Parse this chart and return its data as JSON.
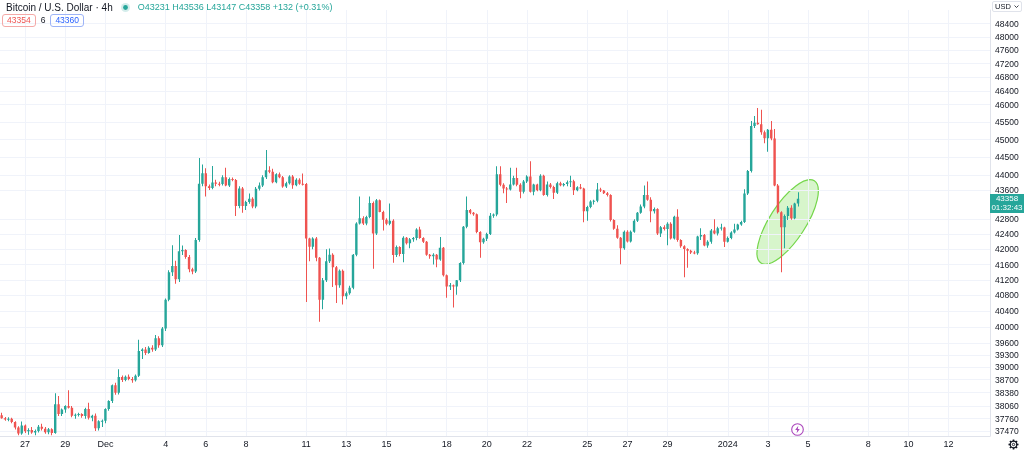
{
  "chart_data": {
    "type": "candlestick",
    "title": "Bitcoin / U.S. Dollar · 4h",
    "ylabel": "USD",
    "annotations": [
      "O43231 H43536 L43147 C43358 +132 (+0.31%)",
      "43354",
      "6",
      "43360",
      "43358",
      "01:32:43"
    ],
    "log": true,
    "grid": true,
    "xlim": [
      "2023-11-25T18:00",
      "2024-01-14T01:30"
    ],
    "xticks": [
      {
        "value": "2023-11-27",
        "label": "27"
      },
      {
        "value": "2023-11-29",
        "label": "29"
      },
      {
        "value": "2023-12-01",
        "label": "Dec"
      },
      {
        "value": "2023-12-04",
        "label": "4"
      },
      {
        "value": "2023-12-06",
        "label": "6"
      },
      {
        "value": "2023-12-08",
        "label": "8"
      },
      {
        "value": "2023-12-11",
        "label": "11"
      },
      {
        "value": "2023-12-13",
        "label": "13"
      },
      {
        "value": "2023-12-15",
        "label": "15"
      },
      {
        "value": "2023-12-18",
        "label": "18"
      },
      {
        "value": "2023-12-20",
        "label": "20"
      },
      {
        "value": "2023-12-22",
        "label": "22"
      },
      {
        "value": "2023-12-25",
        "label": "25"
      },
      {
        "value": "2023-12-27",
        "label": "27"
      },
      {
        "value": "2023-12-29",
        "label": "29"
      },
      {
        "value": "2024-01-01",
        "label": "2024"
      },
      {
        "value": "2024-01-03",
        "label": "3"
      },
      {
        "value": "2024-01-05",
        "label": "5"
      },
      {
        "value": "2024-01-08",
        "label": "8"
      },
      {
        "value": "2024-01-10",
        "label": "10"
      },
      {
        "value": "2024-01-12",
        "label": "12"
      }
    ],
    "ylim": [
      37350,
      48820
    ],
    "yticks": [
      37470,
      37760,
      38060,
      38380,
      38700,
      39000,
      39300,
      39600,
      40000,
      40400,
      40800,
      41200,
      41600,
      42000,
      42400,
      42800,
      43600,
      44000,
      44500,
      45000,
      45500,
      46000,
      46400,
      46800,
      47200,
      47600,
      48000,
      48400
    ],
    "x": [
      "2023-11-25T20:00",
      "2023-11-26T00:00",
      "2023-11-26T04:00",
      "2023-11-26T08:00",
      "2023-11-26T12:00",
      "2023-11-26T16:00",
      "2023-11-26T20:00",
      "2023-11-27T00:00",
      "2023-11-27T04:00",
      "2023-11-27T08:00",
      "2023-11-27T12:00",
      "2023-11-27T16:00",
      "2023-11-27T20:00",
      "2023-11-28T00:00",
      "2023-11-28T04:00",
      "2023-11-28T08:00",
      "2023-11-28T12:00",
      "2023-11-28T16:00",
      "2023-11-28T20:00",
      "2023-11-29T00:00",
      "2023-11-29T04:00",
      "2023-11-29T08:00",
      "2023-11-29T12:00",
      "2023-11-29T16:00",
      "2023-11-29T20:00",
      "2023-11-30T00:00",
      "2023-11-30T04:00",
      "2023-11-30T08:00",
      "2023-11-30T12:00",
      "2023-11-30T16:00",
      "2023-11-30T20:00",
      "2023-12-01T00:00",
      "2023-12-01T04:00",
      "2023-12-01T08:00",
      "2023-12-01T12:00",
      "2023-12-01T16:00",
      "2023-12-01T20:00",
      "2023-12-02T00:00",
      "2023-12-02T04:00",
      "2023-12-02T08:00",
      "2023-12-02T12:00",
      "2023-12-02T16:00",
      "2023-12-02T20:00",
      "2023-12-03T00:00",
      "2023-12-03T04:00",
      "2023-12-03T08:00",
      "2023-12-03T12:00",
      "2023-12-03T16:00",
      "2023-12-03T20:00",
      "2023-12-04T00:00",
      "2023-12-04T04:00",
      "2023-12-04T08:00",
      "2023-12-04T12:00",
      "2023-12-04T16:00",
      "2023-12-04T20:00",
      "2023-12-05T00:00",
      "2023-12-05T04:00",
      "2023-12-05T08:00",
      "2023-12-05T12:00",
      "2023-12-05T16:00",
      "2023-12-05T20:00",
      "2023-12-06T00:00",
      "2023-12-06T04:00",
      "2023-12-06T08:00",
      "2023-12-06T12:00",
      "2023-12-06T16:00",
      "2023-12-06T20:00",
      "2023-12-07T00:00",
      "2023-12-07T04:00",
      "2023-12-07T08:00",
      "2023-12-07T12:00",
      "2023-12-07T16:00",
      "2023-12-07T20:00",
      "2023-12-08T00:00",
      "2023-12-08T04:00",
      "2023-12-08T08:00",
      "2023-12-08T12:00",
      "2023-12-08T16:00",
      "2023-12-08T20:00",
      "2023-12-09T00:00",
      "2023-12-09T04:00",
      "2023-12-09T08:00",
      "2023-12-09T12:00",
      "2023-12-09T16:00",
      "2023-12-09T20:00",
      "2023-12-10T00:00",
      "2023-12-10T04:00",
      "2023-12-10T08:00",
      "2023-12-10T12:00",
      "2023-12-10T16:00",
      "2023-12-10T20:00",
      "2023-12-11T00:00",
      "2023-12-11T04:00",
      "2023-12-11T08:00",
      "2023-12-11T12:00",
      "2023-12-11T16:00",
      "2023-12-11T20:00",
      "2023-12-12T00:00",
      "2023-12-12T04:00",
      "2023-12-12T08:00",
      "2023-12-12T12:00",
      "2023-12-12T16:00",
      "2023-12-12T20:00",
      "2023-12-13T00:00",
      "2023-12-13T04:00",
      "2023-12-13T08:00",
      "2023-12-13T12:00",
      "2023-12-13T16:00",
      "2023-12-13T20:00",
      "2023-12-14T00:00",
      "2023-12-14T04:00",
      "2023-12-14T08:00",
      "2023-12-14T12:00",
      "2023-12-14T16:00",
      "2023-12-14T20:00",
      "2023-12-15T00:00",
      "2023-12-15T04:00",
      "2023-12-15T08:00",
      "2023-12-15T12:00",
      "2023-12-15T16:00",
      "2023-12-15T20:00",
      "2023-12-16T00:00",
      "2023-12-16T04:00",
      "2023-12-16T08:00",
      "2023-12-16T12:00",
      "2023-12-16T16:00",
      "2023-12-16T20:00",
      "2023-12-17T00:00",
      "2023-12-17T04:00",
      "2023-12-17T08:00",
      "2023-12-17T12:00",
      "2023-12-17T16:00",
      "2023-12-17T20:00",
      "2023-12-18T00:00",
      "2023-12-18T04:00",
      "2023-12-18T08:00",
      "2023-12-18T12:00",
      "2023-12-18T16:00",
      "2023-12-18T20:00",
      "2023-12-19T00:00",
      "2023-12-19T04:00",
      "2023-12-19T08:00",
      "2023-12-19T12:00",
      "2023-12-19T16:00",
      "2023-12-19T20:00",
      "2023-12-20T00:00",
      "2023-12-20T04:00",
      "2023-12-20T08:00",
      "2023-12-20T12:00",
      "2023-12-20T16:00",
      "2023-12-20T20:00",
      "2023-12-21T00:00",
      "2023-12-21T04:00",
      "2023-12-21T08:00",
      "2023-12-21T12:00",
      "2023-12-21T16:00",
      "2023-12-21T20:00",
      "2023-12-22T00:00",
      "2023-12-22T04:00",
      "2023-12-22T08:00",
      "2023-12-22T12:00",
      "2023-12-22T16:00",
      "2023-12-22T20:00",
      "2023-12-23T00:00",
      "2023-12-23T04:00",
      "2023-12-23T08:00",
      "2023-12-23T12:00",
      "2023-12-23T16:00",
      "2023-12-23T20:00",
      "2023-12-24T00:00",
      "2023-12-24T04:00",
      "2023-12-24T08:00",
      "2023-12-24T12:00",
      "2023-12-24T16:00",
      "2023-12-24T20:00",
      "2023-12-25T00:00",
      "2023-12-25T04:00",
      "2023-12-25T08:00",
      "2023-12-25T12:00",
      "2023-12-25T16:00",
      "2023-12-25T20:00",
      "2023-12-26T00:00",
      "2023-12-26T04:00",
      "2023-12-26T08:00",
      "2023-12-26T12:00",
      "2023-12-26T16:00",
      "2023-12-26T20:00",
      "2023-12-27T00:00",
      "2023-12-27T04:00",
      "2023-12-27T08:00",
      "2023-12-27T12:00",
      "2023-12-27T16:00",
      "2023-12-27T20:00",
      "2023-12-28T00:00",
      "2023-12-28T04:00",
      "2023-12-28T08:00",
      "2023-12-28T12:00",
      "2023-12-28T16:00",
      "2023-12-28T20:00",
      "2023-12-29T00:00",
      "2023-12-29T04:00",
      "2023-12-29T08:00",
      "2023-12-29T12:00",
      "2023-12-29T16:00",
      "2023-12-29T20:00",
      "2023-12-30T00:00",
      "2023-12-30T04:00",
      "2023-12-30T08:00",
      "2023-12-30T12:00",
      "2023-12-30T16:00",
      "2023-12-30T20:00",
      "2023-12-31T00:00",
      "2023-12-31T04:00",
      "2023-12-31T08:00",
      "2023-12-31T12:00",
      "2023-12-31T16:00",
      "2023-12-31T20:00",
      "2024-01-01T00:00",
      "2024-01-01T04:00",
      "2024-01-01T08:00",
      "2024-01-01T12:00",
      "2024-01-01T16:00",
      "2024-01-01T20:00",
      "2024-01-02T00:00",
      "2024-01-02T04:00",
      "2024-01-02T08:00",
      "2024-01-02T12:00",
      "2024-01-02T16:00",
      "2024-01-02T20:00",
      "2024-01-03T00:00",
      "2024-01-03T04:00",
      "2024-01-03T08:00",
      "2024-01-03T12:00",
      "2024-01-03T16:00",
      "2024-01-03T20:00",
      "2024-01-04T00:00",
      "2024-01-04T04:00",
      "2024-01-04T08:00",
      "2024-01-04T12:00"
    ],
    "ohlc": [
      [
        37840,
        37900,
        37760,
        37770
      ],
      [
        37770,
        37800,
        37710,
        37740
      ],
      [
        37740,
        37790,
        37700,
        37760
      ],
      [
        37760,
        37780,
        37650,
        37680
      ],
      [
        37680,
        37700,
        37500,
        37550
      ],
      [
        37550,
        37580,
        37370,
        37410
      ],
      [
        37410,
        37690,
        37380,
        37600
      ],
      [
        37600,
        37620,
        37420,
        37460
      ],
      [
        37460,
        37530,
        37380,
        37490
      ],
      [
        37490,
        37560,
        37400,
        37430
      ],
      [
        37430,
        37500,
        37370,
        37470
      ],
      [
        37470,
        37610,
        37430,
        37570
      ],
      [
        37570,
        37640,
        37480,
        37520
      ],
      [
        37520,
        37560,
        37400,
        37440
      ],
      [
        37440,
        37540,
        37390,
        37510
      ],
      [
        37510,
        37530,
        37370,
        37420
      ],
      [
        37420,
        38370,
        37400,
        38100
      ],
      [
        38100,
        38300,
        37820,
        37870
      ],
      [
        37870,
        38000,
        37820,
        37980
      ],
      [
        37980,
        38080,
        37900,
        38060
      ],
      [
        38060,
        38440,
        38000,
        38020
      ],
      [
        38020,
        38060,
        37790,
        37830
      ],
      [
        37830,
        37880,
        37760,
        37850
      ],
      [
        37850,
        37900,
        37810,
        37870
      ],
      [
        37870,
        37890,
        37780,
        37820
      ],
      [
        37820,
        38020,
        37760,
        37990
      ],
      [
        37990,
        38140,
        37740,
        37780
      ],
      [
        37780,
        37850,
        37700,
        37830
      ],
      [
        37830,
        37880,
        37470,
        37530
      ],
      [
        37530,
        37720,
        37480,
        37700
      ],
      [
        37700,
        37740,
        37560,
        37710
      ],
      [
        37710,
        38010,
        37650,
        37990
      ],
      [
        37990,
        38200,
        37950,
        38180
      ],
      [
        38180,
        38580,
        38130,
        38560
      ],
      [
        38560,
        38620,
        38330,
        38380
      ],
      [
        38380,
        38950,
        38340,
        38760
      ],
      [
        38760,
        38800,
        38640,
        38690
      ],
      [
        38690,
        38800,
        38660,
        38770
      ],
      [
        38770,
        38820,
        38680,
        38710
      ],
      [
        38710,
        38760,
        38620,
        38680
      ],
      [
        38680,
        38820,
        38650,
        38790
      ],
      [
        38790,
        39680,
        38760,
        39400
      ],
      [
        39400,
        39470,
        39200,
        39440
      ],
      [
        39440,
        39500,
        39300,
        39350
      ],
      [
        39350,
        39520,
        39330,
        39480
      ],
      [
        39480,
        39540,
        39380,
        39440
      ],
      [
        39440,
        39800,
        39400,
        39720
      ],
      [
        39720,
        39770,
        39480,
        39540
      ],
      [
        39540,
        40000,
        39500,
        39960
      ],
      [
        39960,
        40720,
        39900,
        40690
      ],
      [
        40690,
        41450,
        40650,
        41400
      ],
      [
        41400,
        42110,
        41300,
        41560
      ],
      [
        41560,
        41700,
        41100,
        41220
      ],
      [
        41220,
        42380,
        41150,
        41950
      ],
      [
        41950,
        42100,
        41850,
        41980
      ],
      [
        41980,
        42000,
        41750,
        41800
      ],
      [
        41800,
        41850,
        41400,
        41480
      ],
      [
        41480,
        41520,
        41350,
        41420
      ],
      [
        41420,
        42300,
        41380,
        42250
      ],
      [
        42250,
        44480,
        42200,
        43770
      ],
      [
        43770,
        44300,
        43700,
        44060
      ],
      [
        44060,
        44200,
        43420,
        43700
      ],
      [
        43700,
        43750,
        43600,
        43650
      ],
      [
        43650,
        44260,
        43620,
        43800
      ],
      [
        43800,
        43880,
        43700,
        43770
      ],
      [
        43770,
        43820,
        43700,
        43760
      ],
      [
        43760,
        44000,
        43720,
        43950
      ],
      [
        43950,
        44210,
        43700,
        43720
      ],
      [
        43720,
        43940,
        43680,
        43900
      ],
      [
        43900,
        43940,
        43840,
        43870
      ],
      [
        43870,
        43900,
        42890,
        43160
      ],
      [
        43160,
        43700,
        43100,
        43640
      ],
      [
        43640,
        43680,
        42980,
        43160
      ],
      [
        43160,
        43300,
        43050,
        43270
      ],
      [
        43270,
        43500,
        43220,
        43360
      ],
      [
        43360,
        43400,
        43100,
        43150
      ],
      [
        43150,
        43680,
        43100,
        43630
      ],
      [
        43630,
        43800,
        43580,
        43720
      ],
      [
        43720,
        44000,
        43680,
        43950
      ],
      [
        43950,
        44710,
        43900,
        44140
      ],
      [
        44140,
        44250,
        44060,
        44100
      ],
      [
        44100,
        44180,
        43780,
        43810
      ],
      [
        43810,
        44060,
        43780,
        44030
      ],
      [
        44030,
        44080,
        43920,
        43950
      ],
      [
        43950,
        43980,
        43660,
        43690
      ],
      [
        43690,
        43820,
        43650,
        43780
      ],
      [
        43780,
        44000,
        43750,
        43970
      ],
      [
        43970,
        44010,
        43630,
        43730
      ],
      [
        43730,
        43920,
        43700,
        43880
      ],
      [
        43880,
        43920,
        43740,
        43770
      ],
      [
        43770,
        44050,
        43720,
        43760
      ],
      [
        43760,
        43790,
        40630,
        42290
      ],
      [
        42290,
        42310,
        41690,
        42070
      ],
      [
        42070,
        42320,
        42000,
        42290
      ],
      [
        42290,
        42330,
        41690,
        41780
      ],
      [
        41780,
        41800,
        40130,
        40690
      ],
      [
        40690,
        41250,
        40450,
        41190
      ],
      [
        41190,
        42000,
        41150,
        41690
      ],
      [
        41690,
        42020,
        41640,
        41860
      ],
      [
        41860,
        41900,
        41020,
        41530
      ],
      [
        41530,
        41560,
        40610,
        41060
      ],
      [
        41060,
        41470,
        41000,
        41440
      ],
      [
        41440,
        41470,
        40570,
        40780
      ],
      [
        40780,
        40900,
        40700,
        40860
      ],
      [
        40860,
        41050,
        40820,
        41000
      ],
      [
        41000,
        41880,
        40960,
        41860
      ],
      [
        41860,
        42720,
        41820,
        42690
      ],
      [
        42690,
        43420,
        42660,
        42830
      ],
      [
        42830,
        42880,
        42650,
        42690
      ],
      [
        42690,
        42900,
        42640,
        42860
      ],
      [
        42860,
        43420,
        42830,
        43240
      ],
      [
        43240,
        43280,
        41490,
        42420
      ],
      [
        42420,
        43350,
        42380,
        43320
      ],
      [
        43320,
        43340,
        42990,
        43000
      ],
      [
        43000,
        43030,
        42500,
        42790
      ],
      [
        42790,
        42830,
        42640,
        42680
      ],
      [
        42680,
        43230,
        42640,
        42760
      ],
      [
        42760,
        42800,
        41650,
        41850
      ],
      [
        41850,
        42100,
        41800,
        42060
      ],
      [
        42060,
        42080,
        41820,
        41880
      ],
      [
        41880,
        42350,
        41660,
        42310
      ],
      [
        42310,
        42330,
        42130,
        42160
      ],
      [
        42160,
        42300,
        42030,
        42270
      ],
      [
        42270,
        42330,
        42200,
        42300
      ],
      [
        42300,
        42560,
        42240,
        42530
      ],
      [
        42530,
        42600,
        42280,
        42300
      ],
      [
        42300,
        42320,
        42170,
        42200
      ],
      [
        42200,
        42220,
        41830,
        41860
      ],
      [
        41860,
        41880,
        41750,
        41820
      ],
      [
        41820,
        41900,
        41600,
        41860
      ],
      [
        41860,
        41880,
        41530,
        41730
      ],
      [
        41730,
        42330,
        41700,
        42040
      ],
      [
        42040,
        42060,
        41290,
        41320
      ],
      [
        41320,
        41340,
        40740,
        41030
      ],
      [
        41030,
        41120,
        40940,
        41060
      ],
      [
        41060,
        41080,
        40490,
        41030
      ],
      [
        41030,
        41200,
        40820,
        41190
      ],
      [
        41190,
        41660,
        41150,
        41640
      ],
      [
        41640,
        42620,
        41600,
        42600
      ],
      [
        42600,
        43420,
        42560,
        43050
      ],
      [
        43050,
        43080,
        42940,
        42980
      ],
      [
        42980,
        43000,
        42900,
        42940
      ],
      [
        42940,
        42960,
        42430,
        42460
      ],
      [
        42460,
        42480,
        41780,
        42190
      ],
      [
        42190,
        42310,
        42150,
        42280
      ],
      [
        42280,
        42440,
        42220,
        42410
      ],
      [
        42410,
        42970,
        42380,
        42900
      ],
      [
        42900,
        42960,
        42840,
        42930
      ],
      [
        42930,
        44250,
        42880,
        44030
      ],
      [
        44030,
        44250,
        43700,
        43740
      ],
      [
        43740,
        43780,
        43510,
        43640
      ],
      [
        43640,
        43680,
        43240,
        43610
      ],
      [
        43610,
        44210,
        43580,
        43750
      ],
      [
        43750,
        43990,
        43720,
        43930
      ],
      [
        43930,
        44210,
        43700,
        43740
      ],
      [
        43740,
        43780,
        43370,
        43550
      ],
      [
        43550,
        43870,
        43500,
        43830
      ],
      [
        43830,
        44000,
        43790,
        43970
      ],
      [
        43970,
        44390,
        43530,
        43550
      ],
      [
        43550,
        43770,
        43450,
        43750
      ],
      [
        43750,
        43770,
        43560,
        43590
      ],
      [
        43590,
        44030,
        43560,
        43990
      ],
      [
        43990,
        44020,
        43440,
        43460
      ],
      [
        43460,
        43830,
        43420,
        43750
      ],
      [
        43750,
        43790,
        43640,
        43680
      ],
      [
        43680,
        43710,
        43350,
        43520
      ],
      [
        43520,
        43820,
        43490,
        43780
      ],
      [
        43780,
        43820,
        43700,
        43730
      ],
      [
        43730,
        43790,
        43690,
        43760
      ],
      [
        43760,
        43860,
        43700,
        43810
      ],
      [
        43810,
        43990,
        43680,
        43840
      ],
      [
        43840,
        43880,
        43460,
        43590
      ],
      [
        43590,
        43700,
        43560,
        43670
      ],
      [
        43670,
        43760,
        43620,
        43640
      ],
      [
        43640,
        43660,
        42720,
        43020
      ],
      [
        43020,
        43170,
        42760,
        43130
      ],
      [
        43130,
        43320,
        43100,
        43280
      ],
      [
        43280,
        43330,
        43200,
        43300
      ],
      [
        43300,
        43790,
        43260,
        43610
      ],
      [
        43610,
        43660,
        43540,
        43580
      ],
      [
        43580,
        43600,
        43490,
        43510
      ],
      [
        43510,
        43540,
        43420,
        43460
      ],
      [
        43460,
        43480,
        42740,
        42780
      ],
      [
        42780,
        42800,
        42520,
        42550
      ],
      [
        42550,
        42640,
        42280,
        42310
      ],
      [
        42310,
        42330,
        41610,
        42030
      ],
      [
        42030,
        42500,
        41990,
        42470
      ],
      [
        42470,
        42510,
        42180,
        42210
      ],
      [
        42210,
        42500,
        42180,
        42470
      ],
      [
        42470,
        42800,
        42440,
        42760
      ],
      [
        42760,
        43000,
        42730,
        42980
      ],
      [
        42980,
        43200,
        42950,
        43150
      ],
      [
        43150,
        43720,
        43100,
        43460
      ],
      [
        43460,
        43830,
        43300,
        43330
      ],
      [
        43330,
        43400,
        42720,
        43020
      ],
      [
        43020,
        43120,
        42960,
        43080
      ],
      [
        43080,
        43100,
        42380,
        42420
      ],
      [
        42420,
        42620,
        42330,
        42590
      ],
      [
        42590,
        42640,
        42500,
        42540
      ],
      [
        42540,
        42720,
        42110,
        42680
      ],
      [
        42680,
        42720,
        42260,
        42290
      ],
      [
        42290,
        42900,
        42260,
        42870
      ],
      [
        42870,
        43070,
        42200,
        42250
      ],
      [
        42250,
        42270,
        42040,
        42080
      ],
      [
        42080,
        42110,
        41270,
        42010
      ],
      [
        42010,
        42030,
        41520,
        41960
      ],
      [
        41960,
        41990,
        41880,
        41920
      ],
      [
        41920,
        41960,
        41870,
        41900
      ],
      [
        41900,
        42360,
        41860,
        42340
      ],
      [
        42340,
        42560,
        42250,
        42380
      ],
      [
        42380,
        42410,
        42080,
        42100
      ],
      [
        42100,
        42240,
        42040,
        42200
      ],
      [
        42200,
        42540,
        42150,
        42500
      ],
      [
        42500,
        42800,
        42400,
        42420
      ],
      [
        42420,
        42600,
        42370,
        42560
      ],
      [
        42560,
        42680,
        42500,
        42580
      ],
      [
        42580,
        42600,
        42060,
        42200
      ],
      [
        42200,
        42340,
        42180,
        42300
      ],
      [
        42300,
        42480,
        42270,
        42450
      ],
      [
        42450,
        42680,
        42420,
        42530
      ],
      [
        42530,
        42680,
        42500,
        42660
      ],
      [
        42660,
        42760,
        42630,
        42730
      ],
      [
        42730,
        43620,
        42700,
        43500
      ],
      [
        43500,
        44150,
        43460,
        44120
      ],
      [
        44120,
        45530,
        44080,
        45390
      ],
      [
        45390,
        45670,
        45330,
        45480
      ],
      [
        45480,
        45900,
        45420,
        45440
      ],
      [
        45440,
        45850,
        45140,
        45210
      ],
      [
        45210,
        45260,
        44900,
        45040
      ],
      [
        45040,
        45300,
        44660,
        45280
      ],
      [
        45280,
        45530,
        44980,
        45030
      ],
      [
        45030,
        45300,
        43700,
        43720
      ],
      [
        43720,
        43760,
        42960,
        42990
      ],
      [
        42990,
        43020,
        41400,
        42590
      ],
      [
        42590,
        42930,
        42030,
        42890
      ],
      [
        42890,
        43160,
        42780,
        43110
      ],
      [
        43110,
        43180,
        42790,
        42830
      ],
      [
        42830,
        43250,
        42800,
        43226
      ],
      [
        43231,
        43536,
        43147,
        43358
      ]
    ],
    "colors": [
      "#ef5350",
      "#ef5350",
      "#26a69a",
      "#ef5350",
      "#ef5350",
      "#ef5350",
      "#26a69a",
      "#ef5350",
      "#26a69a",
      "#ef5350",
      "#26a69a",
      "#26a69a",
      "#ef5350",
      "#ef5350",
      "#26a69a",
      "#ef5350",
      "#26a69a",
      "#ef5350",
      "#26a69a",
      "#26a69a",
      "#ef5350",
      "#ef5350",
      "#26a69a",
      "#26a69a",
      "#ef5350",
      "#26a69a",
      "#ef5350",
      "#26a69a",
      "#ef5350",
      "#26a69a",
      "#26a69a",
      "#26a69a",
      "#26a69a",
      "#26a69a",
      "#ef5350",
      "#26a69a",
      "#ef5350",
      "#26a69a",
      "#ef5350",
      "#ef5350",
      "#26a69a",
      "#26a69a",
      "#26a69a",
      "#ef5350",
      "#26a69a",
      "#ef5350",
      "#26a69a",
      "#ef5350",
      "#26a69a",
      "#26a69a",
      "#26a69a",
      "#26a69a",
      "#ef5350",
      "#26a69a",
      "#26a69a",
      "#ef5350",
      "#ef5350",
      "#ef5350",
      "#26a69a",
      "#26a69a",
      "#26a69a",
      "#ef5350",
      "#ef5350",
      "#26a69a",
      "#ef5350",
      "#ef5350",
      "#26a69a",
      "#ef5350",
      "#26a69a",
      "#ef5350",
      "#ef5350",
      "#26a69a",
      "#ef5350",
      "#26a69a",
      "#26a69a",
      "#ef5350",
      "#26a69a",
      "#26a69a",
      "#26a69a",
      "#26a69a",
      "#ef5350",
      "#ef5350",
      "#26a69a",
      "#ef5350",
      "#ef5350",
      "#26a69a",
      "#26a69a",
      "#ef5350",
      "#26a69a",
      "#ef5350",
      "#ef5350",
      "#ef5350",
      "#ef5350",
      "#26a69a",
      "#ef5350",
      "#ef5350",
      "#26a69a",
      "#26a69a",
      "#26a69a",
      "#ef5350",
      "#ef5350",
      "#26a69a",
      "#ef5350",
      "#26a69a",
      "#26a69a",
      "#26a69a",
      "#26a69a",
      "#26a69a",
      "#ef5350",
      "#26a69a",
      "#26a69a",
      "#ef5350",
      "#26a69a",
      "#ef5350",
      "#ef5350",
      "#ef5350",
      "#26a69a",
      "#ef5350",
      "#26a69a",
      "#ef5350",
      "#26a69a",
      "#ef5350",
      "#26a69a",
      "#26a69a",
      "#26a69a",
      "#ef5350",
      "#ef5350",
      "#ef5350",
      "#ef5350",
      "#26a69a",
      "#ef5350",
      "#26a69a",
      "#ef5350",
      "#ef5350",
      "#26a69a",
      "#ef5350",
      "#26a69a",
      "#26a69a",
      "#26a69a",
      "#26a69a",
      "#ef5350",
      "#ef5350",
      "#ef5350",
      "#ef5350",
      "#26a69a",
      "#26a69a",
      "#26a69a",
      "#26a69a",
      "#26a69a",
      "#ef5350",
      "#ef5350",
      "#ef5350",
      "#26a69a",
      "#26a69a",
      "#ef5350",
      "#ef5350",
      "#26a69a",
      "#26a69a",
      "#ef5350",
      "#26a69a",
      "#ef5350",
      "#26a69a",
      "#ef5350",
      "#26a69a",
      "#ef5350",
      "#ef5350",
      "#26a69a",
      "#ef5350",
      "#26a69a",
      "#26a69a",
      "#26a69a",
      "#ef5350",
      "#26a69a",
      "#ef5350",
      "#ef5350",
      "#26a69a",
      "#26a69a",
      "#26a69a",
      "#26a69a",
      "#ef5350",
      "#ef5350",
      "#ef5350",
      "#ef5350",
      "#ef5350",
      "#ef5350",
      "#ef5350",
      "#26a69a",
      "#ef5350",
      "#26a69a",
      "#26a69a",
      "#26a69a",
      "#26a69a",
      "#26a69a",
      "#ef5350",
      "#ef5350",
      "#26a69a",
      "#ef5350",
      "#26a69a",
      "#ef5350",
      "#26a69a",
      "#ef5350",
      "#26a69a",
      "#ef5350",
      "#ef5350",
      "#ef5350",
      "#ef5350",
      "#ef5350",
      "#ef5350",
      "#26a69a",
      "#26a69a",
      "#ef5350",
      "#26a69a",
      "#26a69a",
      "#ef5350",
      "#26a69a",
      "#26a69a",
      "#ef5350",
      "#26a69a",
      "#26a69a",
      "#26a69a",
      "#26a69a",
      "#26a69a",
      "#26a69a",
      "#26a69a",
      "#26a69a",
      "#26a69a",
      "#ef5350",
      "#ef5350",
      "#ef5350",
      "#26a69a",
      "#ef5350",
      "#ef5350",
      "#ef5350",
      "#ef5350",
      "#26a69a",
      "#26a69a",
      "#ef5350",
      "#26a69a",
      "#26a69a"
    ]
  }
}
